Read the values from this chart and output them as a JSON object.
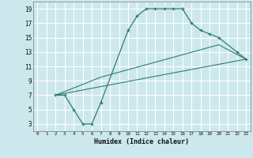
{
  "xlabel": "Humidex (Indice chaleur)",
  "bg_color": "#cce8ec",
  "grid_color": "#ffffff",
  "line_color": "#2e7d6e",
  "xlim": [
    -0.5,
    23.5
  ],
  "ylim": [
    2,
    20
  ],
  "xticks": [
    0,
    1,
    2,
    3,
    4,
    5,
    6,
    7,
    8,
    9,
    10,
    11,
    12,
    13,
    14,
    15,
    16,
    17,
    18,
    19,
    20,
    21,
    22,
    23
  ],
  "yticks": [
    3,
    5,
    7,
    9,
    11,
    13,
    15,
    17,
    19
  ],
  "curve1_x": [
    2,
    3,
    4,
    5,
    6,
    7,
    10,
    11,
    12,
    13,
    14,
    15,
    16,
    17,
    18,
    19,
    20,
    22,
    23
  ],
  "curve1_y": [
    7,
    7,
    5,
    3,
    3,
    6,
    16,
    18,
    19,
    19,
    19,
    19,
    19,
    17,
    16,
    15.5,
    15,
    13,
    12
  ],
  "curve2_x": [
    2,
    7,
    20,
    23
  ],
  "curve2_y": [
    7,
    9.5,
    14,
    12
  ],
  "curve3_x": [
    2,
    23
  ],
  "curve3_y": [
    7,
    12
  ]
}
